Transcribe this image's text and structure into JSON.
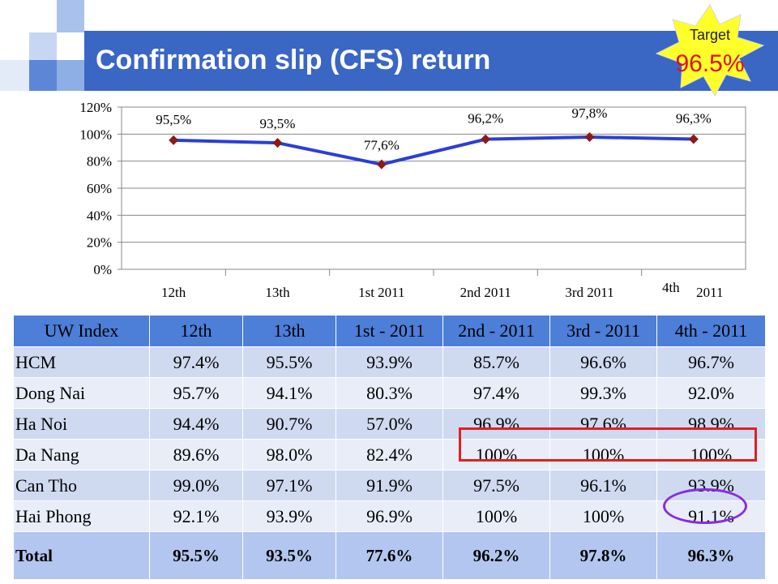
{
  "slide": {
    "title": "Confirmation slip (CFS) return",
    "target_label": "Target",
    "target_value": "96.5%",
    "colors": {
      "title_bar": "#3a66c4",
      "line": "#2a3fd6",
      "marker": "#8b1a1a",
      "target_text": "#e01010",
      "badge_fill": "#ffff2b"
    }
  },
  "chart_data": {
    "type": "line",
    "categories": [
      "12th",
      "13th",
      "1st 2011",
      "2nd 2011",
      "3rd 2011",
      "4th 2011"
    ],
    "category_labels": [
      {
        "main": "12th",
        "sup": ""
      },
      {
        "main": "13th",
        "sup": ""
      },
      {
        "main": "1st 2011",
        "sup": ""
      },
      {
        "main": "2nd 2011",
        "sup": ""
      },
      {
        "main": "3rd 2011",
        "sup": ""
      },
      {
        "main": "2011",
        "sup": "4th"
      }
    ],
    "series": [
      {
        "values": [
          95.5,
          93.5,
          77.6,
          96.2,
          97.8,
          96.3
        ],
        "labels": [
          "95,5%",
          "93,5%",
          "77,6%",
          "96,2%",
          "97,8%",
          "96,3%"
        ]
      }
    ],
    "yticks": [
      "0%",
      "20%",
      "40%",
      "60%",
      "80%",
      "100%",
      "120%"
    ],
    "ylim": [
      0,
      120
    ],
    "grid": true,
    "legend": "none"
  },
  "table": {
    "headers": [
      "UW Index",
      "12th",
      "13th",
      "1st - 2011",
      "2nd - 2011",
      "3rd - 2011",
      "4th - 2011"
    ],
    "rows": [
      {
        "name": "HCM",
        "values": [
          "97.4%",
          "95.5%",
          "93.9%",
          "85.7%",
          "96.6%",
          "96.7%"
        ]
      },
      {
        "name": "Dong Nai",
        "values": [
          "95.7%",
          "94.1%",
          "80.3%",
          "97.4%",
          "99.3%",
          "92.0%"
        ]
      },
      {
        "name": "Ha Noi",
        "values": [
          "94.4%",
          "90.7%",
          "57.0%",
          "96.9%",
          "97.6%",
          "98.9%"
        ]
      },
      {
        "name": "Da Nang",
        "values": [
          "89.6%",
          "98.0%",
          "82.4%",
          "100%",
          "100%",
          "100%"
        ]
      },
      {
        "name": "Can Tho",
        "values": [
          "99.0%",
          "97.1%",
          "91.9%",
          "97.5%",
          "96.1%",
          "93.9%"
        ]
      },
      {
        "name": "Hai Phong",
        "values": [
          "92.1%",
          "93.9%",
          "96.9%",
          "100%",
          "100%",
          "91.1%"
        ]
      }
    ],
    "total": {
      "name": "Total",
      "values": [
        "95.5%",
        "93.5%",
        "77.6%",
        "96.2%",
        "97.8%",
        "96.3%"
      ]
    }
  }
}
